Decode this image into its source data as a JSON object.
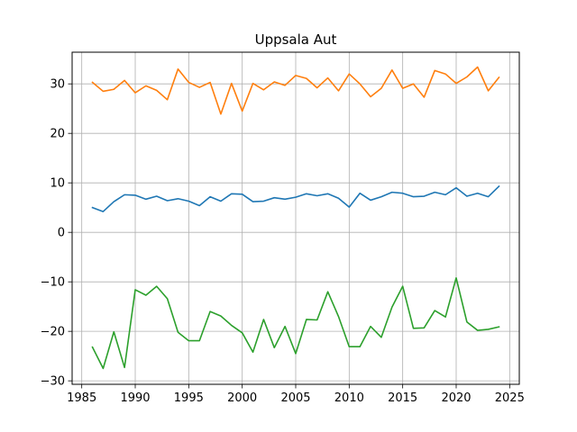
{
  "chart_data": {
    "type": "line",
    "title": "Uppsala Aut",
    "xlabel": "",
    "ylabel": "",
    "xlim": [
      1984.1,
      2025.9
    ],
    "ylim": [
      -30.7,
      36.4
    ],
    "grid": true,
    "x_ticks": [
      1985,
      1990,
      1995,
      2000,
      2005,
      2010,
      2015,
      2020,
      2025
    ],
    "x_tick_labels": [
      "1985",
      "1990",
      "1995",
      "2000",
      "2005",
      "2010",
      "2015",
      "2020",
      "2025"
    ],
    "y_ticks": [
      -30,
      -20,
      -10,
      0,
      10,
      20,
      30
    ],
    "y_tick_labels": [
      "−30",
      "−20",
      "−10",
      "0",
      "10",
      "20",
      "30"
    ],
    "x": [
      1986,
      1987,
      1988,
      1989,
      1990,
      1991,
      1992,
      1993,
      1994,
      1995,
      1996,
      1997,
      1998,
      1999,
      2000,
      2001,
      2002,
      2003,
      2004,
      2005,
      2006,
      2007,
      2008,
      2009,
      2010,
      2011,
      2012,
      2013,
      2014,
      2015,
      2016,
      2017,
      2018,
      2019,
      2020,
      2021,
      2022,
      2023,
      2024
    ],
    "series": [
      {
        "color": "#1f77b4",
        "values": [
          5.0,
          4.2,
          6.2,
          7.6,
          7.5,
          6.7,
          7.3,
          6.4,
          6.8,
          6.3,
          5.4,
          7.2,
          6.3,
          7.8,
          7.7,
          6.2,
          6.3,
          7.0,
          6.7,
          7.1,
          7.8,
          7.4,
          7.8,
          6.9,
          5.1,
          7.9,
          6.5,
          7.2,
          8.1,
          7.9,
          7.2,
          7.3,
          8.1,
          7.6,
          9.0,
          7.3,
          7.9,
          7.2,
          9.3
        ]
      },
      {
        "color": "#ff7f0e",
        "values": [
          30.3,
          28.5,
          28.9,
          30.7,
          28.2,
          29.6,
          28.7,
          26.8,
          33.0,
          30.3,
          29.3,
          30.3,
          23.9,
          30.1,
          24.5,
          30.1,
          28.8,
          30.4,
          29.7,
          31.7,
          31.1,
          29.2,
          31.2,
          28.6,
          32.0,
          30.0,
          27.4,
          29.1,
          32.8,
          29.1,
          30.0,
          27.3,
          32.7,
          32.0,
          30.1,
          31.4,
          33.4,
          28.6,
          31.3
        ]
      },
      {
        "color": "#2ca02c",
        "values": [
          -23.2,
          -27.5,
          -20.1,
          -27.3,
          -11.6,
          -12.7,
          -10.9,
          -13.4,
          -20.2,
          -21.9,
          -21.9,
          -16.0,
          -16.9,
          -18.8,
          -20.3,
          -24.2,
          -17.6,
          -23.3,
          -19.0,
          -24.5,
          -17.6,
          -17.7,
          -12.0,
          -17.0,
          -23.1,
          -23.1,
          -19.0,
          -21.2,
          -15.1,
          -10.9,
          -19.4,
          -19.3,
          -15.8,
          -17.1,
          -9.2,
          -18.1,
          -19.8,
          -19.6,
          -19.1
        ]
      }
    ]
  }
}
